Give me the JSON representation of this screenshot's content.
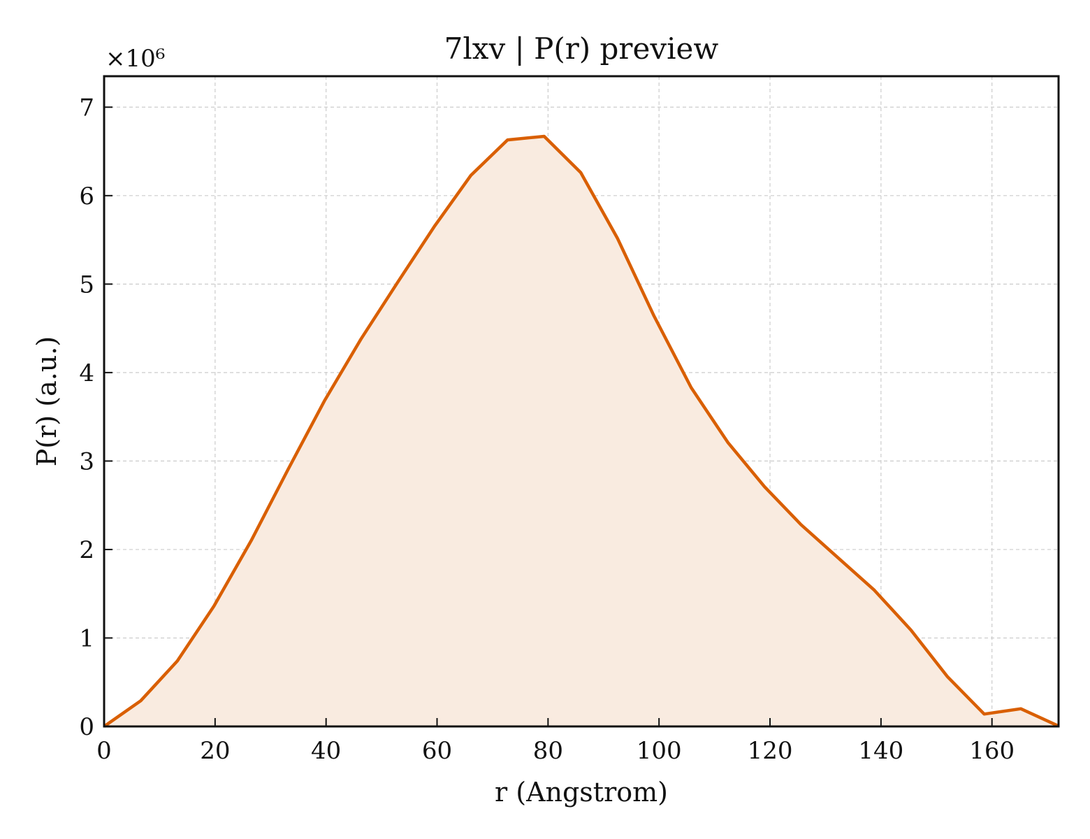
{
  "chart_data": {
    "type": "area",
    "title": "7lxv | P(r) preview",
    "xlabel": "r (Angstrom)",
    "ylabel": "P(r) (a.u.)",
    "y_multiplier_label": "×10⁶",
    "xlim": [
      0,
      172
    ],
    "ylim": [
      0,
      7.35
    ],
    "xticks": [
      0,
      20,
      40,
      60,
      80,
      100,
      120,
      140,
      160
    ],
    "yticks": [
      0,
      1,
      2,
      3,
      4,
      5,
      6,
      7
    ],
    "grid": true,
    "line_color": "#d95f02",
    "fill_color": "#f9ebe0",
    "series": [
      {
        "x": [
          0,
          6.6,
          13.2,
          19.8,
          26.5,
          33.1,
          39.7,
          46.3,
          52.9,
          59.5,
          66.1,
          72.7,
          79.3,
          85.9,
          92.5,
          99.1,
          105.8,
          112.4,
          119.0,
          125.6,
          132.2,
          138.8,
          145.4,
          152.0,
          158.6,
          165.2,
          171.8
        ],
        "values": [
          0,
          0.29,
          0.74,
          1.36,
          2.1,
          2.9,
          3.68,
          4.38,
          5.02,
          5.65,
          6.23,
          6.63,
          6.67,
          6.26,
          5.52,
          4.64,
          3.83,
          3.21,
          2.71,
          2.28,
          1.91,
          1.54,
          1.09,
          0.56,
          0.14,
          0.2,
          0.01
        ]
      }
    ]
  }
}
